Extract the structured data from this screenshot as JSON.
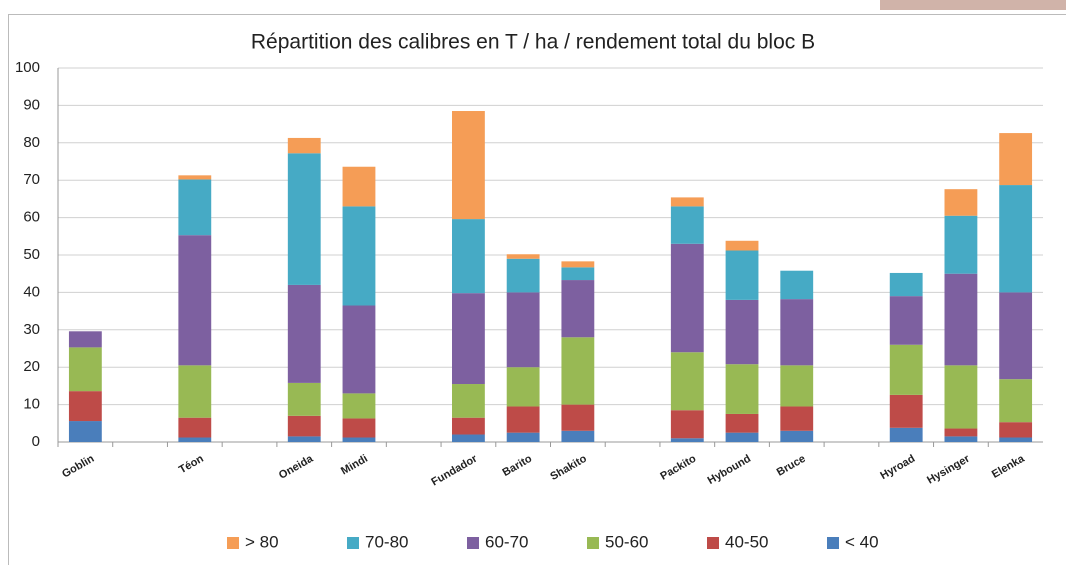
{
  "chart_data": {
    "type": "stacked_bar",
    "title": "Répartition des calibres en T / ha / rendement total du bloc B",
    "categories": [
      "Goblin",
      null,
      "Téon",
      null,
      "Oneida",
      "Mindi",
      null,
      "Fundador",
      "Barito",
      "Shakito",
      null,
      "Packito",
      "Hybound",
      "Bruce",
      null,
      "Hyroad",
      "Hysinger",
      "Elenka"
    ],
    "series": [
      {
        "name": "< 40",
        "color": "#4a7ebb",
        "values": [
          5.6,
          null,
          1.2,
          null,
          1.5,
          1.2,
          null,
          2,
          2.5,
          3,
          null,
          1,
          2.5,
          3,
          null,
          3.8,
          1.5,
          1.2
        ]
      },
      {
        "name": "40-50",
        "color": "#be4b48",
        "values": [
          8,
          null,
          5.3,
          null,
          5.5,
          5.1,
          null,
          4.5,
          7,
          7,
          null,
          7.5,
          5,
          6.5,
          null,
          8.8,
          2.1,
          4.1
        ]
      },
      {
        "name": "50-60",
        "color": "#98b954",
        "values": [
          11.7,
          null,
          14,
          null,
          8.8,
          6.7,
          null,
          9,
          10.5,
          18,
          null,
          15.5,
          13.3,
          11,
          null,
          13.4,
          16.9,
          11.5
        ]
      },
      {
        "name": "60-70",
        "color": "#7d60a0",
        "values": [
          4.3,
          null,
          34.8,
          null,
          26.2,
          23.5,
          null,
          24.3,
          20,
          15.3,
          null,
          29,
          17.2,
          17.7,
          null,
          13,
          24.5,
          23.2
        ]
      },
      {
        "name": "70-80",
        "color": "#46aac5",
        "values": [
          0,
          null,
          14.9,
          null,
          35.2,
          26.5,
          null,
          19.8,
          9,
          3.4,
          null,
          10,
          13.2,
          7.6,
          null,
          6.2,
          15.5,
          28.7
        ]
      },
      {
        "name": "> 80",
        "color": "#f59d56",
        "values": [
          0,
          null,
          1.1,
          null,
          4.1,
          10.6,
          null,
          28.9,
          1.2,
          1.6,
          null,
          2.4,
          2.6,
          0,
          null,
          0,
          7.1,
          13.9
        ]
      }
    ],
    "ylim": [
      0,
      100
    ],
    "yticks": [
      0,
      10,
      20,
      30,
      40,
      50,
      60,
      70,
      80,
      90,
      100
    ],
    "grid": true,
    "legend": "bottom"
  }
}
